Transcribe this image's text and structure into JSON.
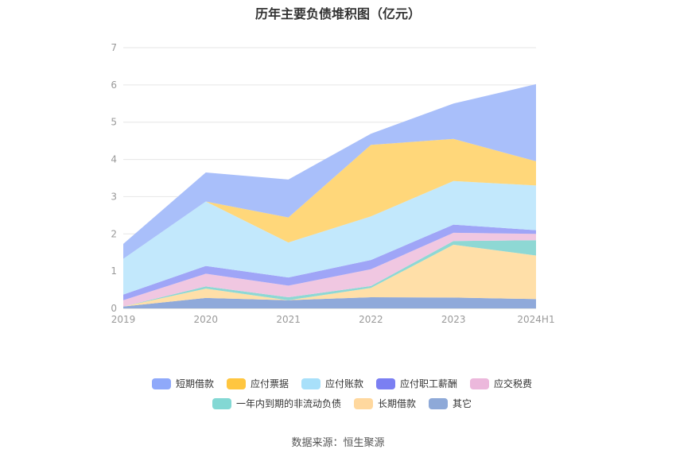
{
  "chart_data": {
    "type": "area",
    "stacked": true,
    "title": "历年主要负债堆积图（亿元）",
    "categories": [
      "2019",
      "2020",
      "2021",
      "2022",
      "2023",
      "2024H1"
    ],
    "ylim": [
      0,
      7
    ],
    "yticks": [
      "0",
      "1",
      "2",
      "3",
      "4",
      "5",
      "6",
      "7"
    ],
    "grid": true,
    "legend_position": "bottom",
    "series": [
      {
        "name": "其它",
        "color": "#8FA9DA",
        "values": [
          0.05,
          0.28,
          0.22,
          0.3,
          0.29,
          0.25
        ]
      },
      {
        "name": "长期借款",
        "color": "#FFDFA8",
        "values": [
          0.0,
          0.25,
          0.0,
          0.25,
          1.42,
          1.17
        ]
      },
      {
        "name": "一年内到期的非流动负债",
        "color": "#8ED8D4",
        "values": [
          0.0,
          0.06,
          0.08,
          0.05,
          0.1,
          0.41
        ]
      },
      {
        "name": "应交税费",
        "color": "#F0C7E1",
        "values": [
          0.17,
          0.34,
          0.31,
          0.45,
          0.22,
          0.17
        ]
      },
      {
        "name": "应付职工薪酬",
        "color": "#9FA5F7",
        "values": [
          0.15,
          0.21,
          0.22,
          0.25,
          0.22,
          0.1
        ]
      },
      {
        "name": "应付账款",
        "color": "#C2E8FC",
        "values": [
          0.96,
          1.73,
          0.94,
          1.17,
          1.17,
          1.2
        ]
      },
      {
        "name": "应付票据",
        "color": "#FFD77A",
        "values": [
          0.0,
          0.0,
          0.67,
          1.92,
          1.13,
          0.65
        ]
      },
      {
        "name": "短期借款",
        "color": "#A9BFFA",
        "values": [
          0.4,
          0.78,
          1.02,
          0.3,
          0.95,
          2.07
        ]
      }
    ]
  },
  "legend": {
    "row1": [
      {
        "name": "短期借款",
        "color": "#8FA9FA"
      },
      {
        "name": "应付票据",
        "color": "#FFC640"
      },
      {
        "name": "应付账款",
        "color": "#A8E0FA"
      },
      {
        "name": "应付职工薪酬",
        "color": "#7B7FF2"
      },
      {
        "name": "应交税费",
        "color": "#ECB8DC"
      }
    ],
    "row2": [
      {
        "name": "一年内到期的非流动负债",
        "color": "#83D8D4"
      },
      {
        "name": "长期借款",
        "color": "#FFD89E"
      },
      {
        "name": "其它",
        "color": "#8EA9D8"
      }
    ]
  },
  "source": "数据来源：恒生聚源"
}
